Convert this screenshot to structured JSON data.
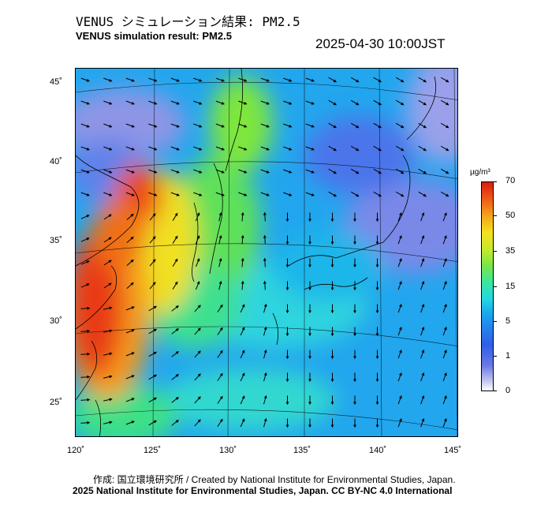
{
  "title_jp": "VENUS シミュレーション結果: PM2.5",
  "title_en": "VENUS simulation result: PM2.5",
  "timestamp": "2025-04-30 10:00JST",
  "map": {
    "lat_ticks": [
      "45˚",
      "40˚",
      "35˚",
      "30˚",
      "25˚"
    ],
    "lon_ticks": [
      "120˚",
      "125˚",
      "130˚",
      "135˚",
      "140˚",
      "145˚"
    ],
    "extent": {
      "lon": [
        120,
        145
      ],
      "lat": [
        23,
        46
      ]
    }
  },
  "colorbar": {
    "unit": "µg/m³",
    "labels": [
      "70",
      "50",
      "35",
      "15",
      "5",
      "1",
      "0"
    ]
  },
  "credits": {
    "jp": "作成: 国立環境研究所 / Created by National Institute for Environmental Studies, Japan.",
    "en": "2025 National Institute for Environmental Studies, Japan. CC BY-NC 4.0 International"
  }
}
